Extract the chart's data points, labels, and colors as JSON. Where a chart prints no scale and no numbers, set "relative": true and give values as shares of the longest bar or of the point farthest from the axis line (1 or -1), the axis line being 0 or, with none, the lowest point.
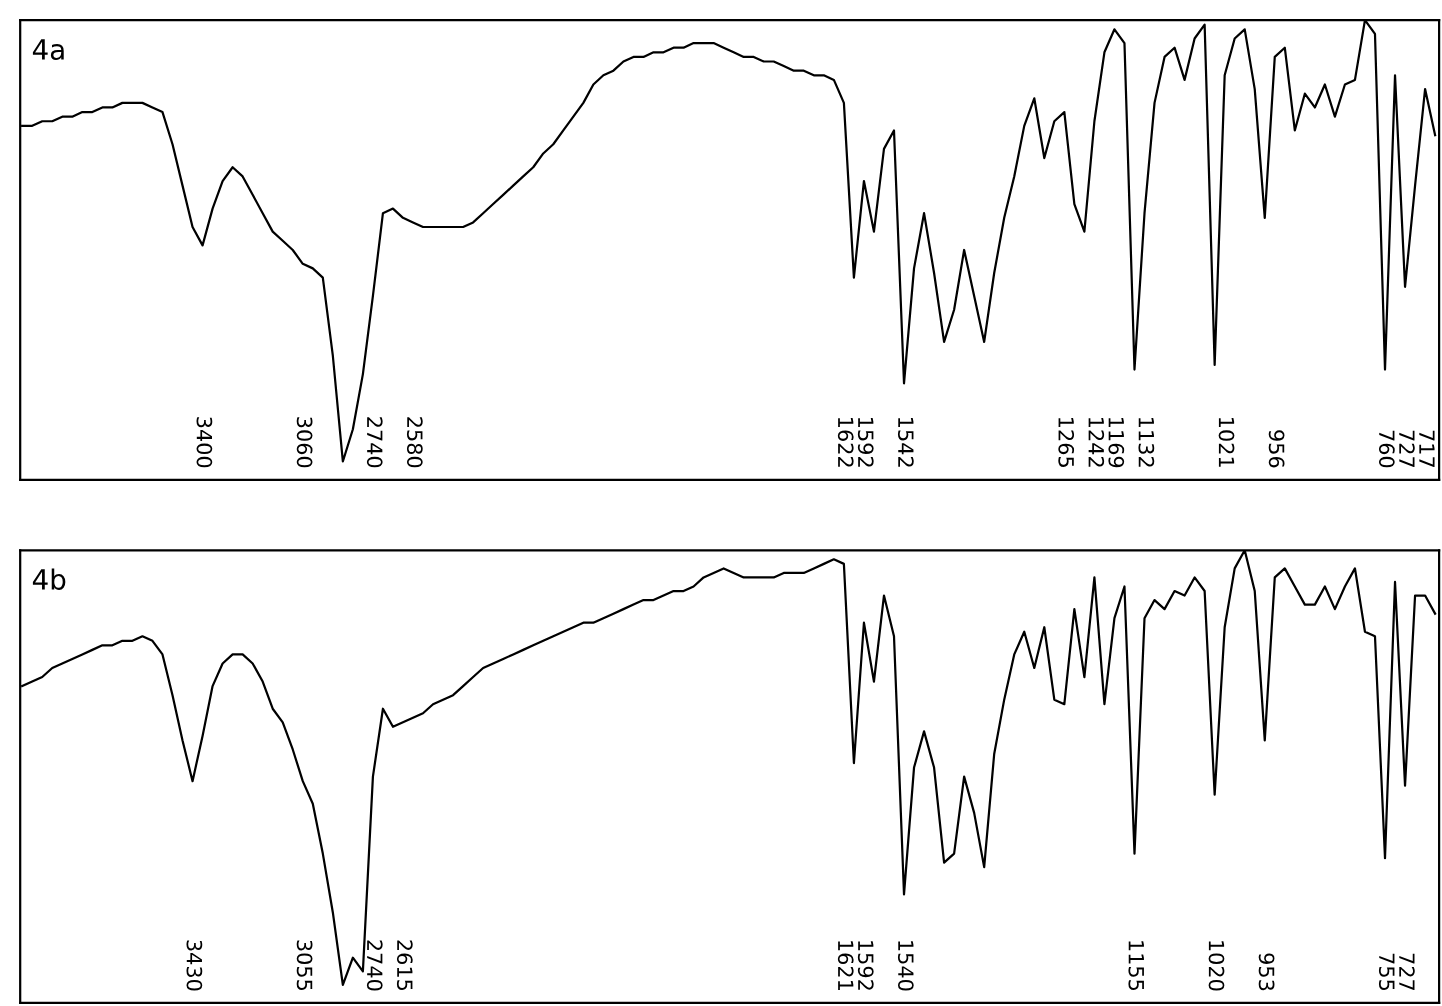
{
  "chart_data": [
    {
      "type": "line",
      "title": "4a",
      "relative": true,
      "tick_labels": "x",
      "categories": [
        null,
        null,
        null,
        null,
        null,
        null,
        null,
        null,
        null,
        null,
        null,
        null,
        null,
        null,
        null,
        null,
        null,
        null,
        "3400",
        null,
        null,
        null,
        null,
        null,
        null,
        null,
        null,
        null,
        "3060",
        null,
        null,
        null,
        null,
        null,
        null,
        "2740",
        null,
        null,
        null,
        "2580",
        null,
        null,
        null,
        null,
        null,
        null,
        null,
        null,
        null,
        null,
        null,
        null,
        null,
        null,
        null,
        null,
        null,
        null,
        null,
        null,
        null,
        null,
        null,
        null,
        null,
        null,
        null,
        null,
        null,
        null,
        null,
        null,
        null,
        null,
        null,
        null,
        null,
        null,
        null,
        null,
        null,
        null,
        "1622",
        null,
        "1592",
        null,
        null,
        null,
        "1542",
        null,
        null,
        null,
        null,
        null,
        null,
        null,
        null,
        null,
        null,
        null,
        null,
        null,
        null,
        null,
        "1265",
        null,
        null,
        "1242",
        null,
        "1169",
        null,
        null,
        "1132",
        null,
        null,
        null,
        null,
        null,
        null,
        null,
        "1021",
        null,
        null,
        null,
        null,
        "956",
        null,
        null,
        null,
        null,
        null,
        null,
        null,
        null,
        null,
        null,
        "760",
        null,
        "727",
        null,
        "717",
        null
      ],
      "series": [
        {
          "color": "#000000",
          "values": [
            0.77,
            0.77,
            0.78,
            0.78,
            0.79,
            0.79,
            0.8,
            0.8,
            0.81,
            0.81,
            0.82,
            0.82,
            0.82,
            0.81,
            0.8,
            0.73,
            0.64,
            0.55,
            0.51,
            0.59,
            0.65,
            0.68,
            0.66,
            0.62,
            0.58,
            0.54,
            0.52,
            0.5,
            0.47,
            0.46,
            0.44,
            0.27,
            0.04,
            0.11,
            0.23,
            0.4,
            0.58,
            0.59,
            0.57,
            0.56,
            0.55,
            0.55,
            0.55,
            0.55,
            0.55,
            0.56,
            0.58,
            0.6,
            0.62,
            0.64,
            0.66,
            0.68,
            0.71,
            0.73,
            0.76,
            0.79,
            0.82,
            0.86,
            0.88,
            0.89,
            0.91,
            0.92,
            0.92,
            0.93,
            0.93,
            0.94,
            0.94,
            0.95,
            0.95,
            0.95,
            0.94,
            0.93,
            0.92,
            0.92,
            0.91,
            0.91,
            0.9,
            0.89,
            0.89,
            0.88,
            0.88,
            0.87,
            0.82,
            0.44,
            0.65,
            0.54,
            0.72,
            0.76,
            0.21,
            0.46,
            0.58,
            0.45,
            0.3,
            0.37,
            0.5,
            0.4,
            0.3,
            0.45,
            0.57,
            0.66,
            0.77,
            0.83,
            0.7,
            0.78,
            0.8,
            0.6,
            0.54,
            0.78,
            0.93,
            0.98,
            0.95,
            0.24,
            0.58,
            0.82,
            0.92,
            0.94,
            0.87,
            0.96,
            0.99,
            0.25,
            0.88,
            0.96,
            0.98,
            0.85,
            0.57,
            0.92,
            0.94,
            0.76,
            0.84,
            0.81,
            0.86,
            0.79,
            0.86,
            0.87,
            1.0,
            0.97,
            0.24,
            0.88,
            0.42,
            0.64,
            0.85,
            0.75
          ]
        }
      ]
    },
    {
      "type": "line",
      "title": "4b",
      "relative": true,
      "tick_labels": "x",
      "categories": [
        null,
        null,
        null,
        null,
        null,
        null,
        null,
        null,
        null,
        null,
        null,
        null,
        null,
        null,
        null,
        null,
        null,
        "3430",
        null,
        null,
        null,
        null,
        null,
        null,
        null,
        null,
        null,
        null,
        "3055",
        null,
        null,
        null,
        null,
        null,
        null,
        "2740",
        null,
        null,
        "2615",
        null,
        null,
        null,
        null,
        null,
        null,
        null,
        null,
        null,
        null,
        null,
        null,
        null,
        null,
        null,
        null,
        null,
        null,
        null,
        null,
        null,
        null,
        null,
        null,
        null,
        null,
        null,
        null,
        null,
        null,
        null,
        null,
        null,
        null,
        null,
        null,
        null,
        null,
        null,
        null,
        null,
        null,
        null,
        "1621",
        null,
        "1592",
        null,
        null,
        null,
        "1540",
        null,
        null,
        null,
        null,
        null,
        null,
        null,
        null,
        null,
        null,
        null,
        null,
        null,
        null,
        null,
        null,
        null,
        null,
        null,
        null,
        null,
        null,
        "1155",
        null,
        null,
        null,
        null,
        null,
        null,
        null,
        "1020",
        null,
        null,
        null,
        null,
        "953",
        null,
        null,
        null,
        null,
        null,
        null,
        null,
        null,
        null,
        null,
        null,
        "755",
        null,
        "727",
        null,
        null,
        null
      ],
      "series": [
        {
          "color": "#000000",
          "values": [
            0.7,
            0.71,
            0.72,
            0.74,
            0.75,
            0.76,
            0.77,
            0.78,
            0.79,
            0.79,
            0.8,
            0.8,
            0.81,
            0.8,
            0.77,
            0.68,
            0.58,
            0.49,
            0.59,
            0.7,
            0.75,
            0.77,
            0.77,
            0.75,
            0.71,
            0.65,
            0.62,
            0.56,
            0.49,
            0.44,
            0.33,
            0.2,
            0.04,
            0.1,
            0.07,
            0.5,
            0.65,
            0.61,
            0.62,
            0.63,
            0.64,
            0.66,
            0.67,
            0.68,
            0.7,
            0.72,
            0.74,
            0.75,
            0.76,
            0.77,
            0.78,
            0.79,
            0.8,
            0.81,
            0.82,
            0.83,
            0.84,
            0.84,
            0.85,
            0.86,
            0.87,
            0.88,
            0.89,
            0.89,
            0.9,
            0.91,
            0.91,
            0.92,
            0.94,
            0.95,
            0.96,
            0.95,
            0.94,
            0.94,
            0.94,
            0.94,
            0.95,
            0.95,
            0.95,
            0.96,
            0.97,
            0.98,
            0.97,
            0.53,
            0.84,
            0.71,
            0.9,
            0.81,
            0.24,
            0.52,
            0.6,
            0.52,
            0.31,
            0.33,
            0.5,
            0.42,
            0.3,
            0.55,
            0.67,
            0.77,
            0.82,
            0.74,
            0.83,
            0.67,
            0.66,
            0.87,
            0.72,
            0.94,
            0.66,
            0.85,
            0.92,
            0.33,
            0.85,
            0.89,
            0.87,
            0.91,
            0.9,
            0.94,
            0.91,
            0.46,
            0.83,
            0.96,
            1.0,
            0.91,
            0.58,
            0.94,
            0.96,
            0.92,
            0.88,
            0.88,
            0.92,
            0.87,
            0.92,
            0.96,
            0.82,
            0.81,
            0.32,
            0.93,
            0.48,
            0.9,
            0.9,
            0.86
          ]
        }
      ]
    }
  ]
}
